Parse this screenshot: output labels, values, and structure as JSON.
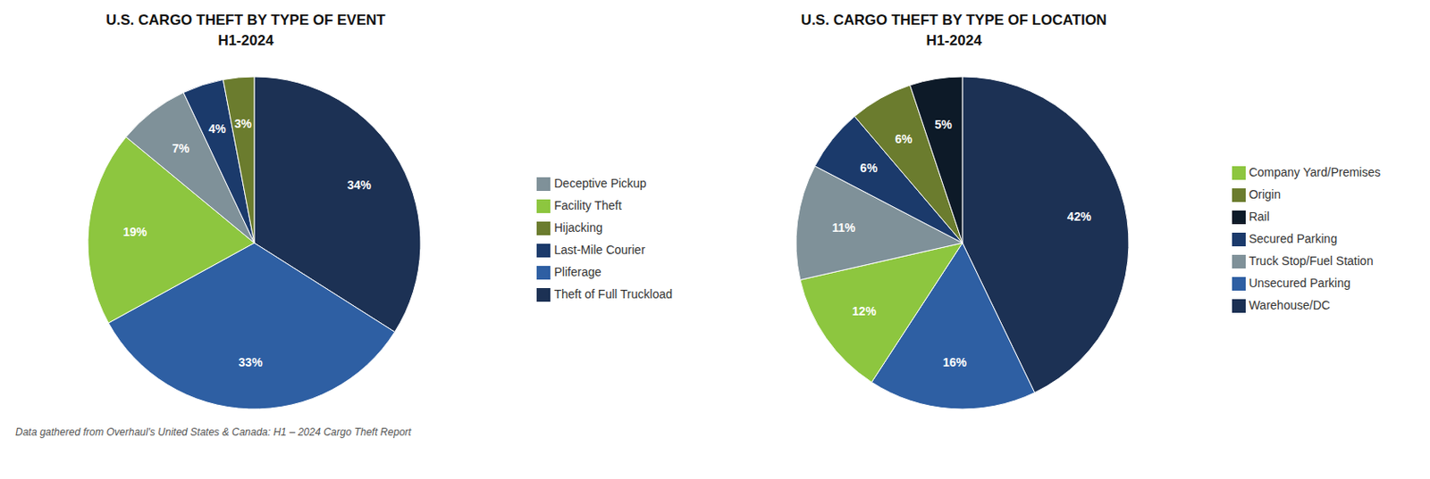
{
  "chart_data": [
    {
      "type": "pie",
      "title": "U.S. CARGO THEFT BY TYPE OF EVENT\nH1-2024",
      "categories": [
        "Theft of Full Truckload",
        "Pliferage",
        "Facility Theft",
        "Deceptive Pickup",
        "Last-Mile Courier",
        "Hijacking"
      ],
      "values": [
        34,
        33,
        19,
        7,
        4,
        3
      ],
      "value_labels": [
        "34%",
        "33%",
        "19%",
        "7%",
        "4%",
        "3%"
      ],
      "colors": [
        "#1c3154",
        "#2e5fa3",
        "#8dc63f",
        "#7f9199",
        "#1b3a6b",
        "#6b7c2e"
      ],
      "data_labels": true,
      "legend": "right",
      "annotations": [
        "Data gathered from Overhaul's United States & Canada: H1 – 2024 Cargo Theft Report"
      ]
    },
    {
      "type": "pie",
      "title": "U.S. CARGO THEFT BY TYPE OF LOCATION\nH1-2024",
      "categories": [
        "Warehouse/DC",
        "Unsecured Parking",
        "Company Yard/Premises",
        "Truck Stop/Fuel Station",
        "Secured Parking",
        "Origin",
        "Rail"
      ],
      "values": [
        42,
        16,
        12,
        11,
        6,
        6,
        5
      ],
      "value_labels": [
        "42%",
        "16%",
        "12%",
        "11%",
        "6%",
        "6%",
        "5%"
      ],
      "colors": [
        "#1c3154",
        "#2e5fa3",
        "#8dc63f",
        "#7f9199",
        "#1b3a6b",
        "#6b7c2e",
        "#0d1a28"
      ],
      "data_labels": true,
      "legend": "right"
    }
  ]
}
